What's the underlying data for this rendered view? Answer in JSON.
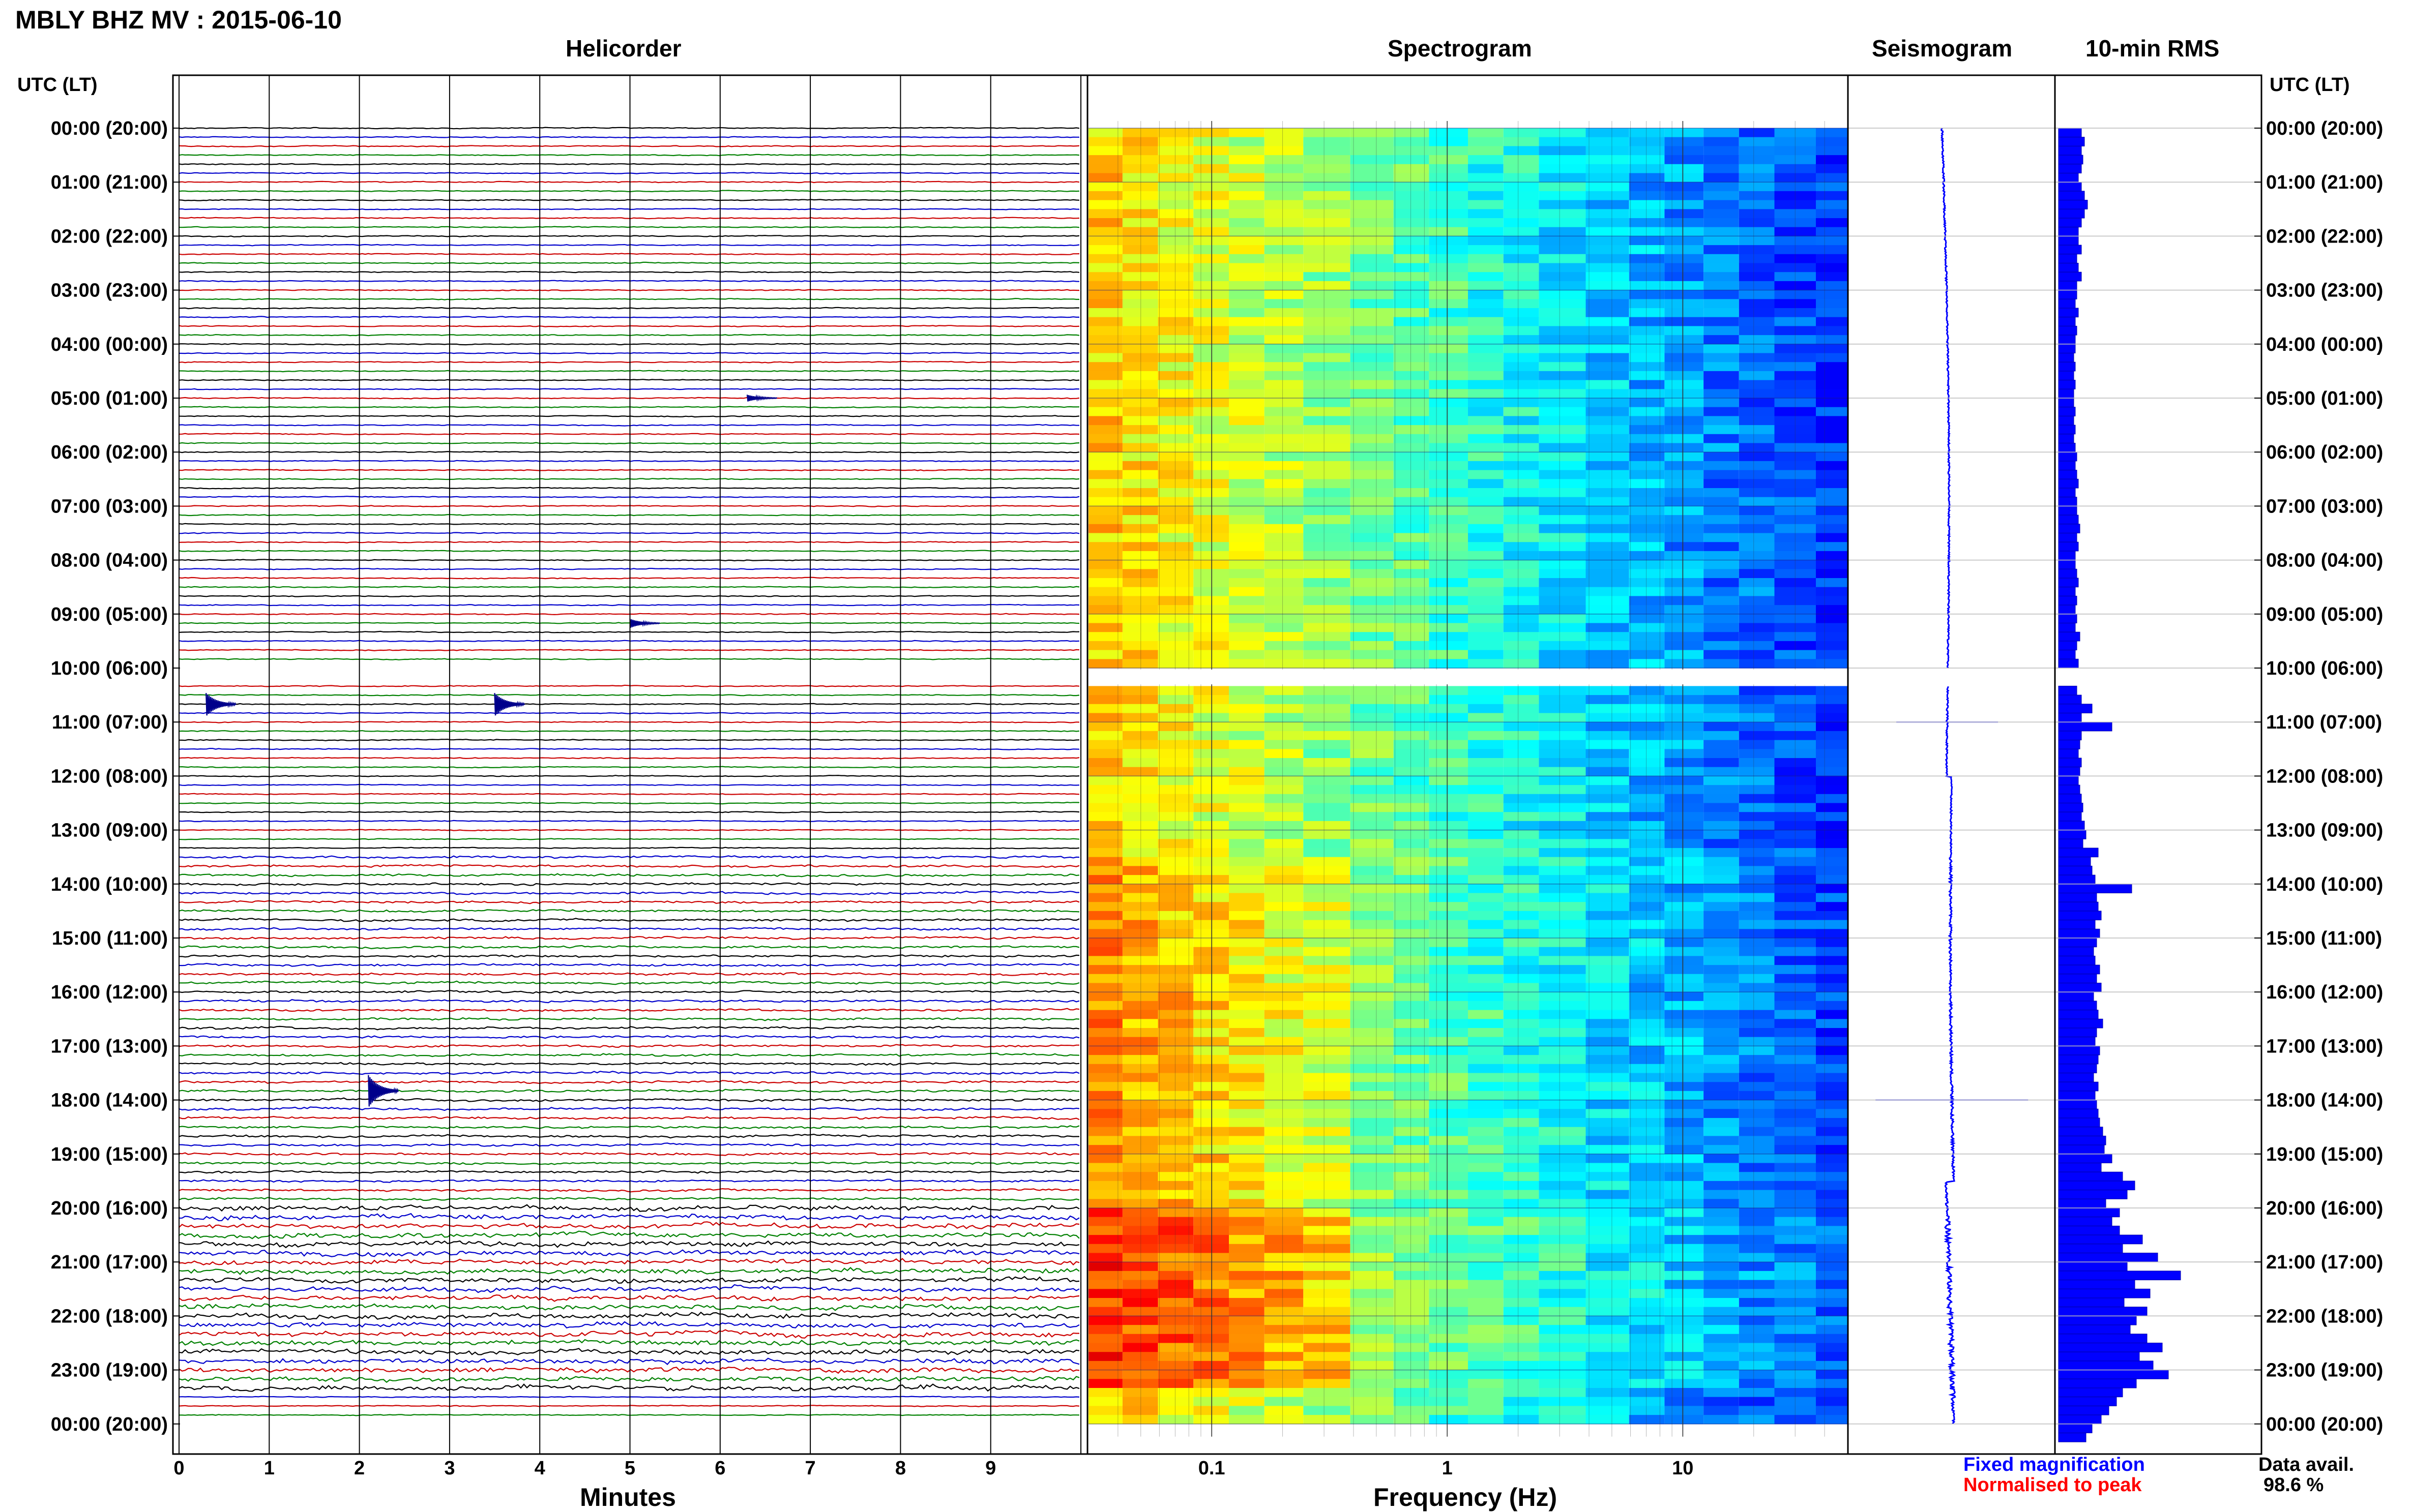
{
  "header": {
    "title": "MBLY BHZ MV : 2015-06-10",
    "time_axis_label": "UTC (LT)"
  },
  "panels": {
    "helicorder": "Helicorder",
    "spectrogram": "Spectrogram",
    "seismogram": "Seismogram",
    "rms": "10-min RMS"
  },
  "footer": {
    "minutes_label": "Minutes",
    "frequency_label": "Frequency (Hz)",
    "legend_fixed": "Fixed magnification",
    "legend_normalised": "Normalised to peak",
    "data_avail_label": "Data avail.",
    "data_avail_value": "98.6 %"
  },
  "colors": {
    "fixed": "#0000ff",
    "normalised": "#ff0000",
    "trace_cycle": [
      "#000000",
      "#0000cc",
      "#cc0000",
      "#008000"
    ],
    "rms_fill": "#0000ff"
  },
  "chart_data": {
    "type": "heatmap",
    "hour_labels": [
      "00:00 (20:00)",
      "01:00 (21:00)",
      "02:00 (22:00)",
      "03:00 (23:00)",
      "04:00 (00:00)",
      "05:00 (01:00)",
      "06:00 (02:00)",
      "07:00 (03:00)",
      "08:00 (04:00)",
      "09:00 (05:00)",
      "10:00 (06:00)",
      "11:00 (07:00)",
      "12:00 (08:00)",
      "13:00 (09:00)",
      "14:00 (10:00)",
      "15:00 (11:00)",
      "16:00 (12:00)",
      "17:00 (13:00)",
      "18:00 (14:00)",
      "19:00 (15:00)",
      "20:00 (16:00)",
      "21:00 (17:00)",
      "22:00 (18:00)",
      "23:00 (19:00)",
      "00:00 (20:00)"
    ],
    "minutes_ticks": [
      "0",
      "1",
      "2",
      "3",
      "4",
      "5",
      "6",
      "7",
      "8",
      "9"
    ],
    "minutes_range": [
      0,
      10
    ],
    "frequency_ticks": [
      "0.1",
      "1",
      "10"
    ],
    "frequency_range": [
      0.03,
      50
    ],
    "frequency_scale": "log",
    "traces_per_hour": 6,
    "data_gap_hours": [
      10.0,
      10.33
    ],
    "helicorder_events": [
      {
        "hour": 10.67,
        "minute": 0.3,
        "amplitude": 1.0
      },
      {
        "hour": 10.67,
        "minute": 3.5,
        "amplitude": 1.0
      },
      {
        "hour": 17.83,
        "minute": 2.1,
        "amplitude": 1.4
      },
      {
        "hour": 9.17,
        "minute": 5.0,
        "amplitude": 0.4
      },
      {
        "hour": 5.0,
        "minute": 6.3,
        "amplitude": 0.3
      }
    ],
    "seismogram_spikes": [
      {
        "hour": 11.0,
        "half_width": 1.0
      },
      {
        "hour": 18.0,
        "half_width": 1.5
      }
    ],
    "rms_10min": [
      0.3,
      0.34,
      0.3,
      0.32,
      0.3,
      0.26,
      0.3,
      0.34,
      0.38,
      0.34,
      0.3,
      0.26,
      0.26,
      0.3,
      0.24,
      0.26,
      0.3,
      0.24,
      0.24,
      0.22,
      0.26,
      0.22,
      0.24,
      0.22,
      0.22,
      0.2,
      0.22,
      0.2,
      0.22,
      0.2,
      0.2,
      0.22,
      0.2,
      0.22,
      0.2,
      0.22,
      0.24,
      0.22,
      0.24,
      0.26,
      0.22,
      0.24,
      0.24,
      0.26,
      0.28,
      0.24,
      0.26,
      0.22,
      0.22,
      0.24,
      0.26,
      0.22,
      0.24,
      0.22,
      0.24,
      0.22,
      0.28,
      0.24,
      0.22,
      0.26,
      0.0,
      0.0,
      0.24,
      0.3,
      0.44,
      0.3,
      0.7,
      0.3,
      0.28,
      0.26,
      0.3,
      0.28,
      0.26,
      0.28,
      0.3,
      0.32,
      0.3,
      0.34,
      0.36,
      0.32,
      0.52,
      0.42,
      0.44,
      0.48,
      0.96,
      0.5,
      0.52,
      0.56,
      0.48,
      0.54,
      0.5,
      0.46,
      0.48,
      0.54,
      0.5,
      0.56,
      0.46,
      0.5,
      0.52,
      0.58,
      0.5,
      0.48,
      0.54,
      0.52,
      0.5,
      0.46,
      0.52,
      0.48,
      0.5,
      0.52,
      0.54,
      0.58,
      0.62,
      0.6,
      0.7,
      0.56,
      0.84,
      1.0,
      0.9,
      0.62,
      0.8,
      0.7,
      0.8,
      1.1,
      0.84,
      1.3,
      0.9,
      1.6,
      1.0,
      1.2,
      0.86,
      1.16,
      1.02,
      0.94,
      1.16,
      1.36,
      1.06,
      1.24,
      1.44,
      1.02,
      0.84,
      0.76,
      0.66,
      0.56,
      0.44,
      0.36
    ],
    "spectrogram_columns_hz": [
      0.035,
      0.05,
      0.07,
      0.1,
      0.14,
      0.2,
      0.3,
      0.5,
      0.7,
      1,
      1.5,
      2,
      3,
      5,
      7,
      10,
      15,
      20,
      30,
      45
    ]
  }
}
